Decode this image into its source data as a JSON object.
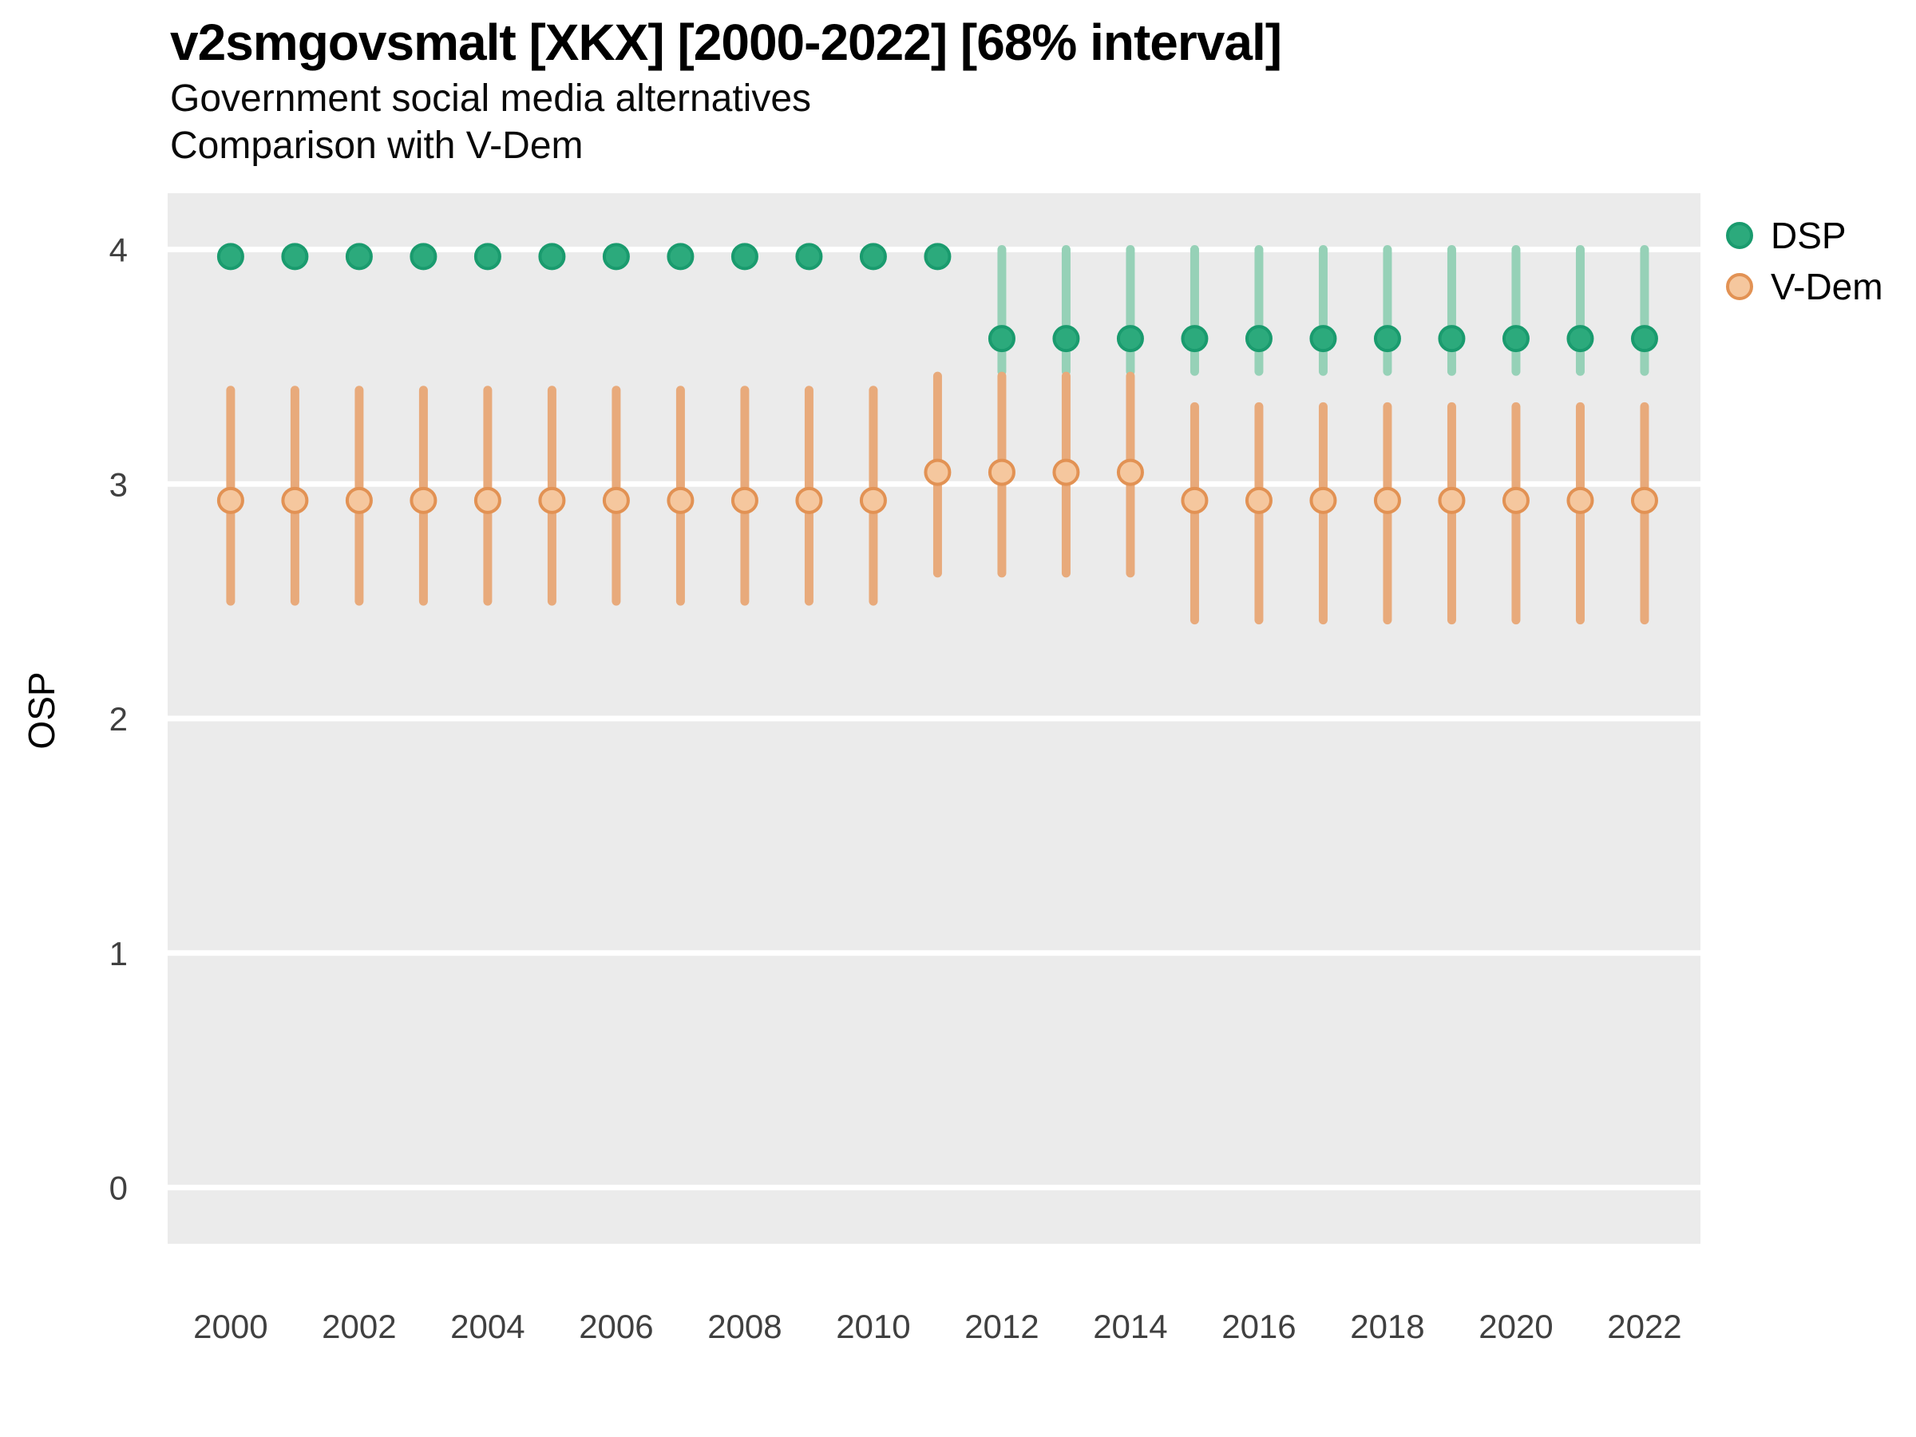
{
  "header": {
    "title": "v2smgovsmalt [XKX] [2000-2022] [68% interval]",
    "subtitle1": "Government social media alternatives",
    "subtitle2": "Comparison with V-Dem"
  },
  "legend": {
    "items": [
      {
        "label": "DSP",
        "fill": "#2CAA7C",
        "stroke": "#1A9B6E"
      },
      {
        "label": "V-Dem",
        "fill": "#F5C79E",
        "stroke": "#E29254"
      }
    ]
  },
  "axes": {
    "y_title": "OSP",
    "y_ticks": [
      0,
      1,
      2,
      3,
      4
    ],
    "x_ticks": [
      2000,
      2002,
      2004,
      2006,
      2008,
      2010,
      2012,
      2014,
      2016,
      2018,
      2020,
      2022
    ]
  },
  "colors": {
    "panel_background": "#EBEBEB",
    "gridline": "#FFFFFF",
    "tick_text": "#404040",
    "dsp_point_fill": "#2CAA7C",
    "dsp_point_stroke": "#1A9B6E",
    "dsp_bar": "#96D1B7",
    "vdem_point_fill": "#F5C79E",
    "vdem_point_stroke": "#E29254",
    "vdem_bar": "#E8AA7B"
  },
  "chart_data": {
    "type": "scatter",
    "title": "v2smgovsmalt [XKX] [2000-2022] [68% interval]",
    "subtitle": [
      "Government social media alternatives",
      "Comparison with V-Dem"
    ],
    "interval": "68%",
    "xlabel": "",
    "ylabel": "OSP",
    "grid": true,
    "legend_position": "right-top",
    "xlim": [
      1999.02,
      2022.87
    ],
    "ylim": [
      -0.24,
      4.24
    ],
    "x": [
      2000,
      2001,
      2002,
      2003,
      2004,
      2005,
      2006,
      2007,
      2008,
      2009,
      2010,
      2011,
      2012,
      2013,
      2014,
      2015,
      2016,
      2017,
      2018,
      2019,
      2020,
      2021,
      2022
    ],
    "series": [
      {
        "name": "DSP",
        "point_fill": "#2CAA7C",
        "point_stroke": "#1A9B6E",
        "bar_color": "#96D1B7",
        "values": [
          3.97,
          3.97,
          3.97,
          3.97,
          3.97,
          3.97,
          3.97,
          3.97,
          3.97,
          3.97,
          3.97,
          3.97,
          3.62,
          3.62,
          3.62,
          3.62,
          3.62,
          3.62,
          3.62,
          3.62,
          3.62,
          3.62,
          3.62
        ],
        "lo": [
          null,
          null,
          null,
          null,
          null,
          null,
          null,
          null,
          null,
          null,
          null,
          null,
          3.48,
          3.48,
          3.48,
          3.48,
          3.48,
          3.48,
          3.48,
          3.48,
          3.48,
          3.48,
          3.48
        ],
        "hi": [
          null,
          null,
          null,
          null,
          null,
          null,
          null,
          null,
          null,
          null,
          null,
          null,
          4.0,
          4.0,
          4.0,
          4.0,
          4.0,
          4.0,
          4.0,
          4.0,
          4.0,
          4.0,
          4.0
        ]
      },
      {
        "name": "V-Dem",
        "point_fill": "#F5C79E",
        "point_stroke": "#E29254",
        "bar_color": "#E8AA7B",
        "values": [
          2.93,
          2.93,
          2.93,
          2.93,
          2.93,
          2.93,
          2.93,
          2.93,
          2.93,
          2.93,
          2.93,
          3.05,
          3.05,
          3.05,
          3.05,
          2.93,
          2.93,
          2.93,
          2.93,
          2.93,
          2.93,
          2.93,
          2.93
        ],
        "lo": [
          2.5,
          2.5,
          2.5,
          2.5,
          2.5,
          2.5,
          2.5,
          2.5,
          2.5,
          2.5,
          2.5,
          2.62,
          2.62,
          2.62,
          2.62,
          2.42,
          2.42,
          2.42,
          2.42,
          2.42,
          2.42,
          2.42,
          2.42
        ],
        "hi": [
          3.4,
          3.4,
          3.4,
          3.4,
          3.4,
          3.4,
          3.4,
          3.4,
          3.4,
          3.4,
          3.4,
          3.46,
          3.46,
          3.46,
          3.46,
          3.33,
          3.33,
          3.33,
          3.33,
          3.33,
          3.33,
          3.33,
          3.33
        ]
      }
    ]
  }
}
